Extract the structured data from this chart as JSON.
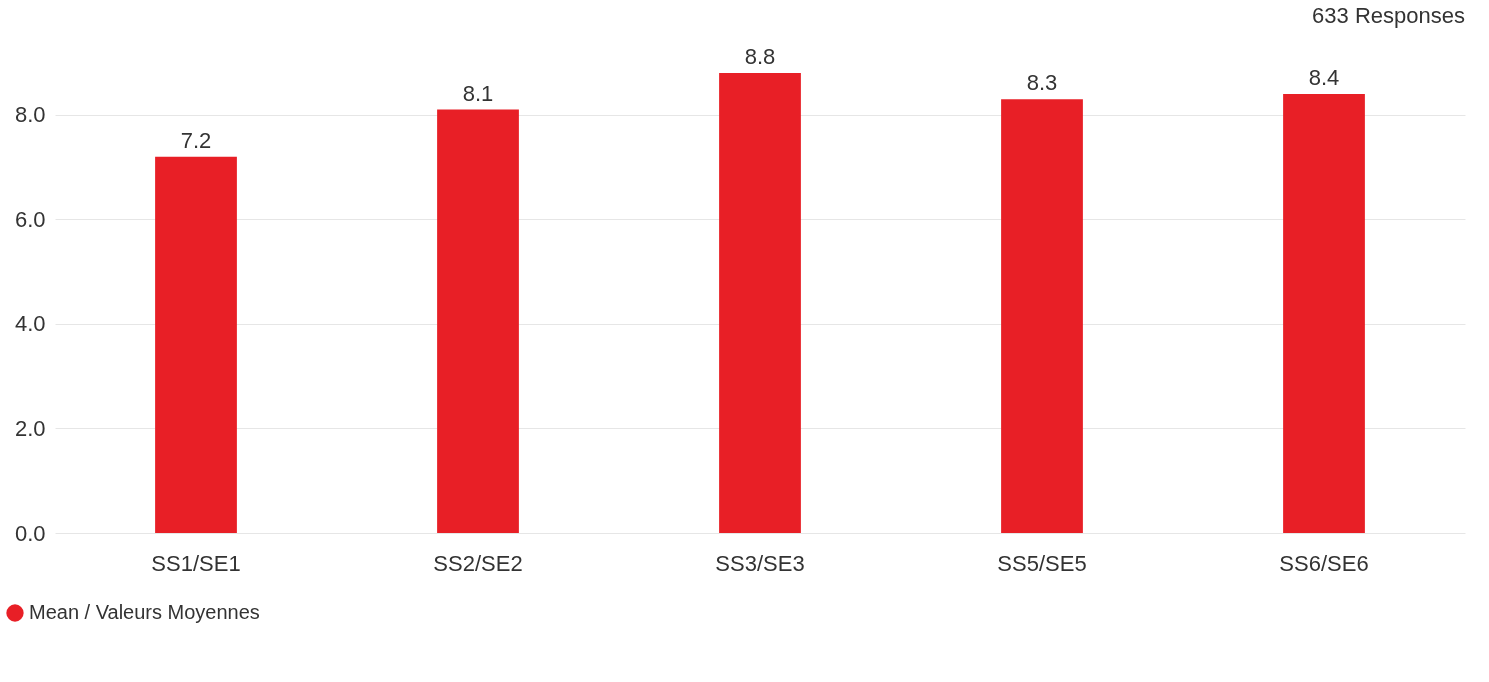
{
  "chart_data": {
    "type": "bar",
    "annotations": [
      "633 Responses"
    ],
    "categories": [
      "SS1/SE1",
      "SS2/SE2",
      "SS3/SE3",
      "SS5/SE5",
      "SS6/SE6"
    ],
    "series": [
      {
        "name": "Mean / Valeurs Moyennes",
        "color": "#e81f26",
        "values": [
          7.2,
          8.1,
          8.8,
          8.3,
          8.4
        ]
      }
    ],
    "yticks": [
      {
        "value": 0,
        "label": "0.0"
      },
      {
        "value": 2,
        "label": "2.0"
      },
      {
        "value": 4,
        "label": "4.0"
      },
      {
        "value": 6,
        "label": "6.0"
      },
      {
        "value": 8,
        "label": "8.0"
      }
    ],
    "ylim": [
      0,
      8.8
    ],
    "grid": "y",
    "legend": "bottom left",
    "marker": "circle",
    "data_labels": true
  }
}
